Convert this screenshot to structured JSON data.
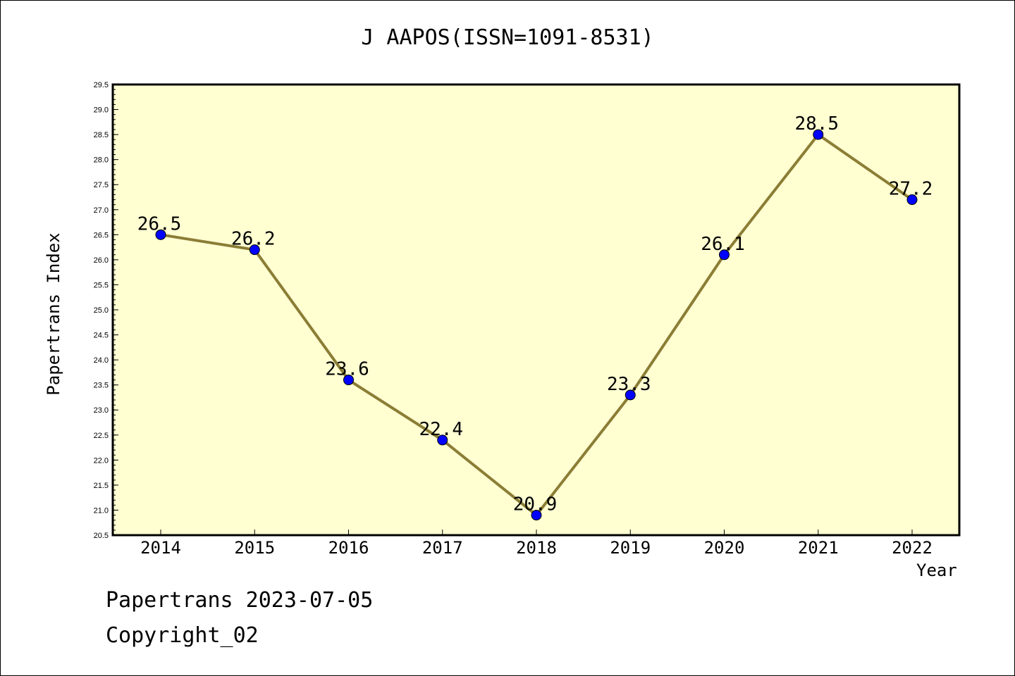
{
  "title": "J AAPOS(ISSN=1091-8531)",
  "footer": {
    "line1": "Papertrans 2023-07-05",
    "line2": "Copyright_02"
  },
  "colors": {
    "plot_background": "#ffffd2",
    "line": "#8b7d35",
    "marker": "#0000ff",
    "frame": "#000000"
  },
  "chart_data": {
    "type": "line",
    "x": [
      "2014",
      "2015",
      "2016",
      "2017",
      "2018",
      "2019",
      "2020",
      "2021",
      "2022"
    ],
    "series": [
      {
        "values": [
          26.5,
          26.2,
          23.6,
          22.4,
          20.9,
          23.3,
          26.1,
          28.5,
          27.2
        ],
        "data_labels": [
          "26.5",
          "26.2",
          "23.6",
          "22.4",
          "20.9",
          "23.3",
          "26.1",
          "28.5",
          "27.2"
        ]
      }
    ],
    "title": "J AAPOS(ISSN=1091-8531)",
    "xlabel": "Year",
    "ylabel": "Papertrans Index",
    "ylim": [
      20.5,
      29.5
    ],
    "yticks": [
      "20.5",
      "21.0",
      "21.5",
      "22.0",
      "22.5",
      "23.0",
      "23.5",
      "24.0",
      "24.5",
      "25.0",
      "25.5",
      "26.0",
      "26.5",
      "27.0",
      "27.5",
      "28.0",
      "28.5",
      "29.0",
      "29.5"
    ],
    "grid": false,
    "legend": "none",
    "markers": true
  }
}
